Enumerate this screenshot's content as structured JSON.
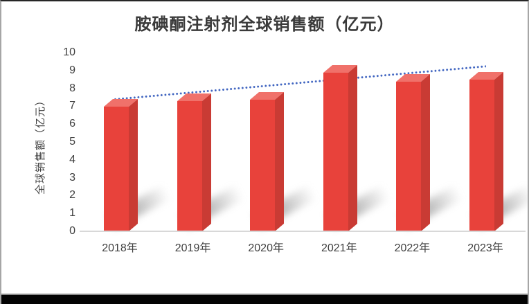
{
  "window": {
    "background": "#ffffff",
    "frame_top_color": "#262626",
    "frame_side_color": "#a6a6a6",
    "bottom_bar_color": "#030303",
    "bottom_bar_top_line_color": "#8c8c8c"
  },
  "chart_data": {
    "type": "bar",
    "style": "3d-column",
    "title": "胺碘酮注射剂全球销售额（亿元）",
    "ylabel": "全球销售额（亿元）",
    "xlabel": "",
    "categories": [
      "2018年",
      "2019年",
      "2020年",
      "2021年",
      "2022年",
      "2023年"
    ],
    "series": [
      {
        "name": "全球销售额",
        "values": [
          7.4,
          7.7,
          7.8,
          9.3,
          8.8,
          8.9
        ]
      }
    ],
    "ylim": [
      0,
      10
    ],
    "ytick_step": 1,
    "grid": false,
    "legend": false,
    "trendline": {
      "type": "linear",
      "line_style": "dotted",
      "start_value": 7.4,
      "end_value": 9.25,
      "color": "#3f64c0"
    },
    "colors": {
      "bar_front": "#e8423b",
      "bar_top": "#f0716a",
      "bar_side": "#c93b34",
      "axis_line": "#d8d8d8",
      "tick_text": "#404040",
      "title_text": "#3a3a3a",
      "shadow": "#8a8a8a"
    }
  }
}
